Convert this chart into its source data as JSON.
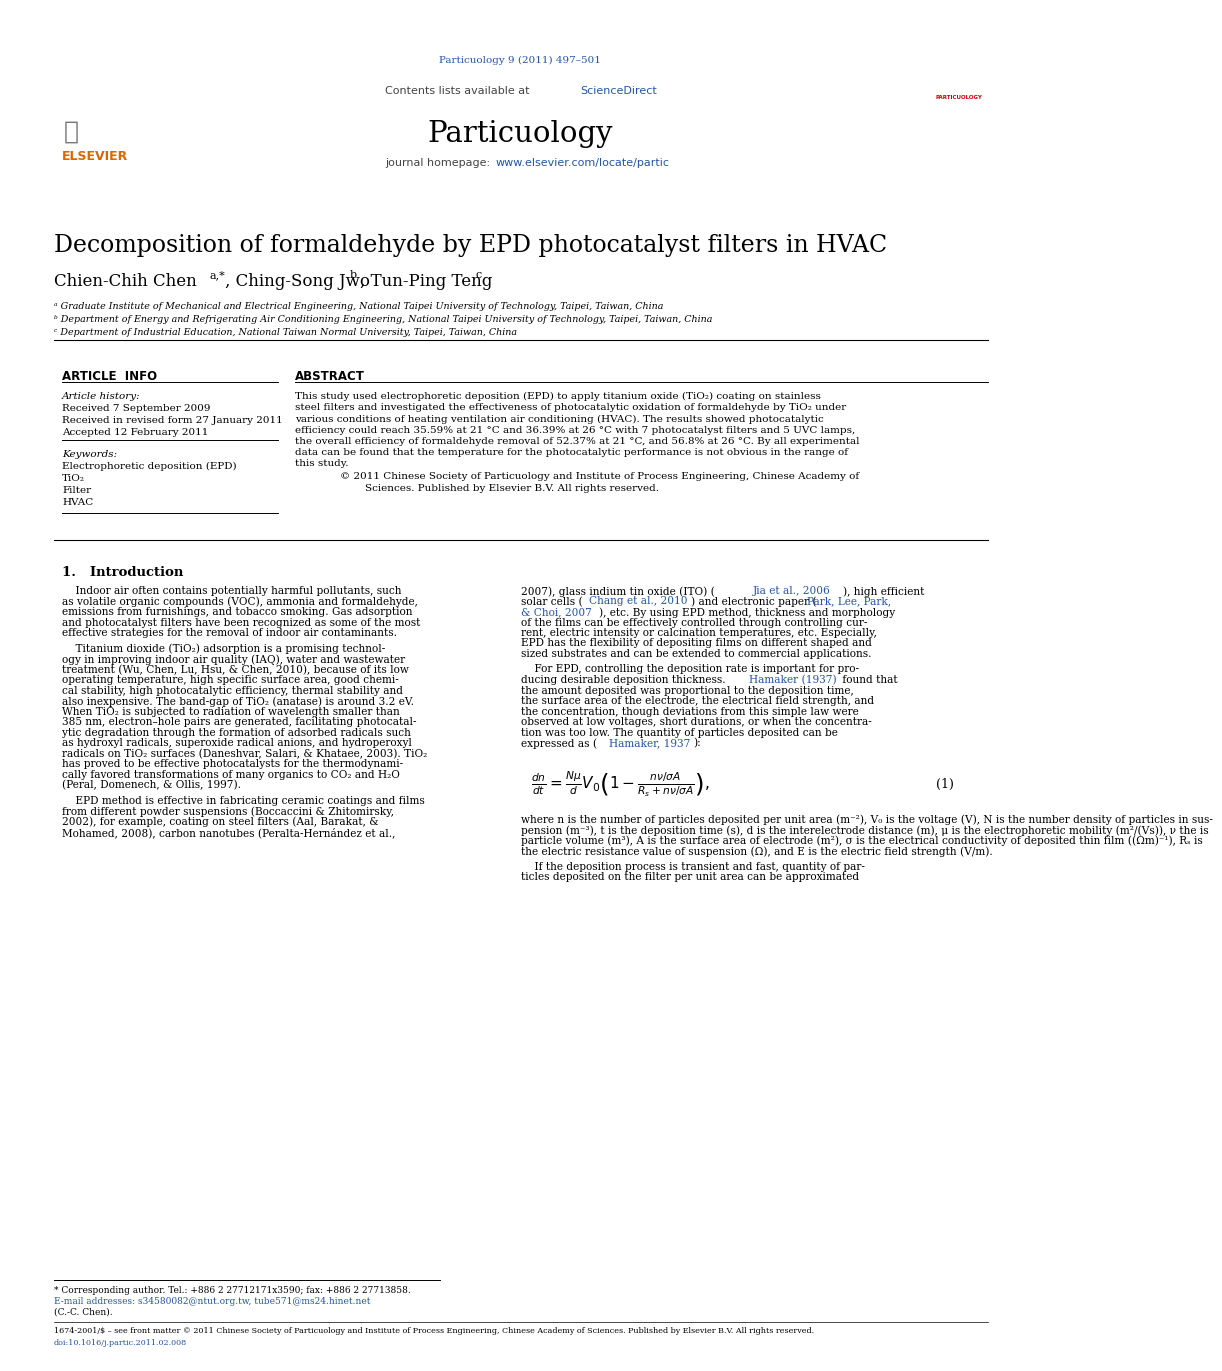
{
  "title": "Decomposition of formaldehyde by EPD photocatalyst filters in HVAC",
  "journal_ref": "Particuology 9 (2011) 497–501",
  "journal_url": "www.elsevier.com/locate/partic",
  "sciencedirect_text": "Contents lists available at",
  "sciencedirect_link": "ScienceDirect",
  "journal_name": "Particuology",
  "journal_homepage": "journal homepage:",
  "journal_link": "www.elsevier.com/locate/partic",
  "elsevier_text": "ELSEVIER",
  "author1": "Chien-Chih Chen",
  "author1_sup": "a,*",
  "author2": ", Ching-Song Jwo",
  "author2_sup": "b",
  "author3": ", Tun-Ping Teng",
  "author3_sup": "c",
  "affil_a": "ᵃ Graduate Institute of Mechanical and Electrical Engineering, National Taipei University of Technology, Taipei, Taiwan, China",
  "affil_b": "ᵇ Department of Energy and Refrigerating Air Conditioning Engineering, National Taipei University of Technology, Taipei, Taiwan, China",
  "affil_c": "ᶜ Department of Industrial Education, National Taiwan Normal University, Taipei, Taiwan, China",
  "art_info": "ARTICLE  INFO",
  "art_abstract": "ABSTRACT",
  "art_history": "Article history:",
  "received": "Received 7 September 2009",
  "revised": "Received in revised form 27 January 2011",
  "accepted": "Accepted 12 February 2011",
  "keywords_label": "Keywords:",
  "kw1": "Electrophoretic deposition (EPD)",
  "kw2": "TiO₂",
  "kw3": "Filter",
  "kw4": "HVAC",
  "abs_lines": [
    "This study used electrophoretic deposition (EPD) to apply titanium oxide (TiO₂) coating on stainless",
    "steel filters and investigated the effectiveness of photocatalytic oxidation of formaldehyde by TiO₂ under",
    "various conditions of heating ventilation air conditioning (HVAC). The results showed photocatalytic",
    "efficiency could reach 35.59% at 21 °C and 36.39% at 26 °C with 7 photocatalyst filters and 5 UVC lamps,",
    "the overall efficiency of formaldehyde removal of 52.37% at 21 °C, and 56.8% at 26 °C. By all experimental",
    "data can be found that the temperature for the photocatalytic performance is not obvious in the range of",
    "this study."
  ],
  "copy1": "© 2011 Chinese Society of Particuology and Institute of Process Engineering, Chinese Academy of",
  "copy2": "Sciences. Published by Elsevier B.V. All rights reserved.",
  "sec1": "1.   Introduction",
  "lc_p1": [
    "    Indoor air often contains potentially harmful pollutants, such",
    "as volatile organic compounds (VOC), ammonia and formaldehyde,",
    "emissions from furnishings, and tobacco smoking. Gas adsorption",
    "and photocatalyst filters have been recognized as some of the most",
    "effective strategies for the removal of indoor air contaminants."
  ],
  "lc_p2": [
    "    Titanium dioxide (TiO₂) adsorption is a promising technol-",
    "ogy in improving indoor air quality (IAQ), water and wastewater",
    "treatment (Wu, Chen, Lu, Hsu, & Chen, 2010), because of its low",
    "operating temperature, high specific surface area, good chemi-",
    "cal stability, high photocatalytic efficiency, thermal stability and",
    "also inexpensive. The band-gap of TiO₂ (anatase) is around 3.2 eV.",
    "When TiO₂ is subjected to radiation of wavelength smaller than",
    "385 nm, electron–hole pairs are generated, facilitating photocatal-",
    "ytic degradation through the formation of adsorbed radicals such",
    "as hydroxyl radicals, superoxide radical anions, and hydroperoxyl",
    "radicals on TiO₂ surfaces (Daneshvar, Salari, & Khataee, 2003). TiO₂",
    "has proved to be effective photocatalysts for the thermodynami-",
    "cally favored transformations of many organics to CO₂ and H₂O",
    "(Peral, Domenech, & Ollis, 1997)."
  ],
  "lc_p3": [
    "    EPD method is effective in fabricating ceramic coatings and films",
    "from different powder suspensions (Boccaccini & Zhitomirsky,",
    "2002), for example, coating on steel filters (Aal, Barakat, &",
    "Mohamed, 2008), carbon nanotubes (Peralta-Hernández et al.,"
  ],
  "rc_p1": [
    "2007), glass indium tin oxide (ITO) (Jia et al., 2006), high efficient",
    "solar cells (Chang et al., 2010) and electronic paper (Park, Lee, Park,",
    "& Choi, 2007), etc. By using EPD method, thickness and morphology",
    "of the films can be effectively controlled through controlling cur-",
    "rent, electric intensity or calcination temperatures, etc. Especially,",
    "EPD has the flexibility of depositing films on different shaped and",
    "sized substrates and can be extended to commercial applications."
  ],
  "rc_p2": [
    "    For EPD, controlling the deposition rate is important for pro-",
    "ducing desirable deposition thickness. Hamaker (1937) found that",
    "the amount deposited was proportional to the deposition time,",
    "the surface area of the electrode, the electrical field strength, and",
    "the concentration, though deviations from this simple law were",
    "observed at low voltages, short durations, or when the concentra-",
    "tion was too low. The quantity of particles deposited can be",
    "expressed as (Hamaker, 1937):"
  ],
  "eq_desc": [
    "where n is the number of particles deposited per unit area (m⁻²), V₀ is the voltage (V), N is the number density of particles in sus-",
    "pension (m⁻³), t is the deposition time (s), d is the interelectrode distance (m), μ is the electrophoretic mobility (m²/(Vs)), ν the is",
    "particle volume (m³), A is the surface area of electrode (m²), σ is the electrical conductivity of deposited thin film ((Ωm)⁻¹), Rₛ is",
    "the electric resistance value of suspension (Ω), and E is the electric field strength (V/m)."
  ],
  "rc_p3": [
    "    If the deposition process is transient and fast, quantity of par-",
    "ticles deposited on the filter per unit area can be approximated"
  ],
  "fn1": "* Corresponding author. Tel.: +886 2 27712171x3590; fax: +886 2 27713858.",
  "fn2": "E-mail addresses: s34580082@ntut.org.tw, tube571@ms24.hinet.net",
  "fn3": "(C.-C. Chen).",
  "footer": "1674-2001/$ – see front matter © 2011 Chinese Society of Particuology and Institute of Process Engineering, Chinese Academy of Sciences. Published by Elsevier B.V. All rights reserved.",
  "footer_doi": "doi:10.1016/j.partic.2011.02.008",
  "bg": "#ffffff",
  "dark_blue": "#000080",
  "link_blue": "#2255aa",
  "orange": "#DD6600",
  "black": "#000000",
  "gray_bg": "#f0f0f0",
  "dark_bar": "#222222"
}
